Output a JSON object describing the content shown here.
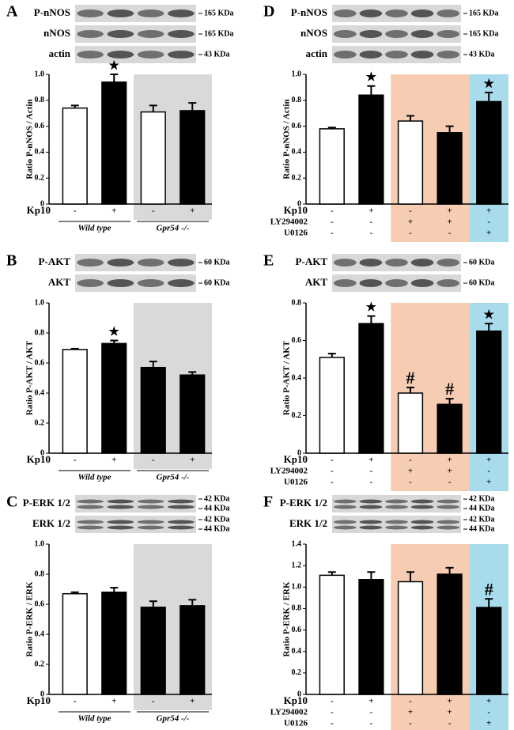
{
  "chart_data": [
    {
      "type": "bar",
      "panel": "A",
      "blots": [
        {
          "label": "P-nNOS",
          "size": "165 KDa"
        },
        {
          "label": "nNOS",
          "size": "165 KDa"
        },
        {
          "label": "actin",
          "size": "43 KDa"
        }
      ],
      "y_label": "Ratio P-nNOS / Actin",
      "categories": [
        null,
        null,
        null,
        null
      ],
      "values": [
        0.74,
        0.94,
        0.71,
        0.72
      ],
      "errors": [
        0.02,
        0.06,
        0.05,
        0.06
      ],
      "colors": [
        "#ffffff",
        "#000000",
        "#ffffff",
        "#000000"
      ],
      "annotations": [
        null,
        "★",
        null,
        null
      ],
      "conditions": [
        {
          "name": "Kp10",
          "signs": [
            "-",
            "+",
            "-",
            "+"
          ]
        }
      ],
      "groups": [
        {
          "label": "Wild type",
          "size": 2
        },
        {
          "label": "Gpr54 -/-",
          "size": 2,
          "shade": "#d9d9d9"
        }
      ],
      "ylim": [
        0,
        1
      ],
      "yticks": [
        0,
        0.2,
        0.4,
        0.6,
        0.8,
        {
          "value": 1,
          "label": "1.0"
        }
      ]
    },
    {
      "type": "bar",
      "panel": "B",
      "blots": [
        {
          "label": "P-AKT",
          "size": "60 KDa"
        },
        {
          "label": "AKT",
          "size": "60 KDa"
        }
      ],
      "y_label": "Ratio P-AKT / AKT",
      "categories": [
        null,
        null,
        null,
        null
      ],
      "values": [
        0.69,
        0.73,
        0.57,
        0.52
      ],
      "errors": [
        0.005,
        0.02,
        0.04,
        0.02
      ],
      "colors": [
        "#ffffff",
        "#000000",
        "#000000",
        "#000000"
      ],
      "annotations": [
        null,
        "★",
        null,
        null
      ],
      "conditions": [
        {
          "name": "Kp10",
          "signs": [
            "-",
            "+",
            "-",
            "+"
          ]
        }
      ],
      "groups": [
        {
          "label": "Wild type",
          "size": 2
        },
        {
          "label": "Gpr54 -/-",
          "size": 2,
          "shade": "#d9d9d9"
        }
      ],
      "ylim": [
        0,
        1
      ],
      "yticks": [
        0,
        0.2,
        0.4,
        0.6,
        0.8,
        {
          "value": 1,
          "label": "1.0"
        }
      ]
    },
    {
      "type": "bar",
      "panel": "C",
      "blots": [
        {
          "label": "P-ERK 1/2",
          "size": [
            "42 KDa",
            "44 KDa"
          ]
        },
        {
          "label": "ERK 1/2",
          "size": [
            "42 KDa",
            "44 KDa"
          ]
        }
      ],
      "y_label": "Ratio P-ERK / ERK",
      "categories": [
        null,
        null,
        null,
        null
      ],
      "values": [
        0.67,
        0.68,
        0.58,
        0.59
      ],
      "errors": [
        0.01,
        0.03,
        0.04,
        0.04
      ],
      "colors": [
        "#ffffff",
        "#000000",
        "#000000",
        "#000000"
      ],
      "annotations": [
        null,
        null,
        null,
        null
      ],
      "conditions": [
        {
          "name": "Kp10",
          "signs": [
            "-",
            "+",
            "-",
            "+"
          ]
        }
      ],
      "groups": [
        {
          "label": "Wild type",
          "size": 2
        },
        {
          "label": "Gpr54 -/-",
          "size": 2,
          "shade": "#d9d9d9"
        }
      ],
      "ylim": [
        0,
        1
      ],
      "yticks": [
        0,
        0.2,
        0.4,
        0.6,
        0.8,
        {
          "value": 1,
          "label": "1.0"
        }
      ]
    },
    {
      "type": "bar",
      "panel": "D",
      "blots": [
        {
          "label": "P-nNOS",
          "size": "165 KDa"
        },
        {
          "label": "nNOS",
          "size": "165 KDa"
        },
        {
          "label": "actin",
          "size": "43 KDa"
        }
      ],
      "y_label": "Ratio P-nNOS / Actin",
      "categories": [
        null,
        null,
        null,
        null,
        null
      ],
      "values": [
        0.58,
        0.84,
        0.64,
        0.55,
        0.79
      ],
      "errors": [
        0.01,
        0.07,
        0.04,
        0.05,
        0.07
      ],
      "colors": [
        "#ffffff",
        "#000000",
        "#ffffff",
        "#000000",
        "#000000"
      ],
      "annotations": [
        null,
        "★",
        null,
        null,
        "★"
      ],
      "conditions": [
        {
          "name": "Kp10",
          "signs": [
            "-",
            "+",
            "-",
            "+",
            "+"
          ]
        },
        {
          "name": "LY294002",
          "signs": [
            "-",
            "-",
            "+",
            "+",
            "-"
          ]
        },
        {
          "name": "U0126",
          "signs": [
            "-",
            "-",
            "-",
            "-",
            "+"
          ]
        }
      ],
      "groups": [
        {
          "size": 2
        },
        {
          "size": 2,
          "shade": "#f6cdb3"
        },
        {
          "size": 1,
          "shade": "#a8dbec"
        }
      ],
      "ylim": [
        0,
        1
      ],
      "yticks": [
        0,
        0.2,
        0.4,
        0.6,
        0.8,
        {
          "value": 1,
          "label": "1.0"
        }
      ]
    },
    {
      "type": "bar",
      "panel": "E",
      "blots": [
        {
          "label": "P-AKT",
          "size": "60 KDa"
        },
        {
          "label": "AKT",
          "size": "60 KDa"
        }
      ],
      "y_label": "Ratio P-AKT / AKT",
      "categories": [
        null,
        null,
        null,
        null,
        null
      ],
      "values": [
        0.51,
        0.69,
        0.32,
        0.26,
        0.65
      ],
      "errors": [
        0.02,
        0.04,
        0.03,
        0.03,
        0.04
      ],
      "colors": [
        "#ffffff",
        "#000000",
        "#ffffff",
        "#000000",
        "#000000"
      ],
      "annotations": [
        null,
        "★",
        "#",
        "#",
        "★"
      ],
      "conditions": [
        {
          "name": "Kp10",
          "signs": [
            "-",
            "+",
            "-",
            "+",
            "+"
          ]
        },
        {
          "name": "LY294002",
          "signs": [
            "-",
            "-",
            "+",
            "+",
            "-"
          ]
        },
        {
          "name": "U0126",
          "signs": [
            "-",
            "-",
            "-",
            "-",
            "+"
          ]
        }
      ],
      "groups": [
        {
          "size": 2
        },
        {
          "size": 2,
          "shade": "#f6cdb3"
        },
        {
          "size": 1,
          "shade": "#a8dbec"
        }
      ],
      "ylim": [
        0,
        0.8
      ],
      "yticks": [
        0,
        0.2,
        0.4,
        0.6,
        0.8
      ]
    },
    {
      "type": "bar",
      "panel": "F",
      "blots": [
        {
          "label": "P-ERK 1/2",
          "size": [
            "42 KDa",
            "44 KDa"
          ]
        },
        {
          "label": "ERK 1/2",
          "size": [
            "42 KDa",
            "44 KDa"
          ]
        }
      ],
      "y_label": "Ratio P-ERK / ERK",
      "categories": [
        null,
        null,
        null,
        null,
        null
      ],
      "values": [
        1.11,
        1.07,
        1.05,
        1.12,
        0.81
      ],
      "errors": [
        0.03,
        0.07,
        0.09,
        0.06,
        0.08
      ],
      "colors": [
        "#ffffff",
        "#000000",
        "#ffffff",
        "#000000",
        "#000000"
      ],
      "annotations": [
        null,
        null,
        null,
        null,
        "#"
      ],
      "conditions": [
        {
          "name": "Kp10",
          "signs": [
            "-",
            "+",
            "-",
            "+",
            "+"
          ]
        },
        {
          "name": "LY294002",
          "signs": [
            "-",
            "-",
            "+",
            "+",
            "-"
          ]
        },
        {
          "name": "U0126",
          "signs": [
            "-",
            "-",
            "-",
            "-",
            "+"
          ]
        }
      ],
      "groups": [
        {
          "size": 2
        },
        {
          "size": 2,
          "shade": "#f6cdb3"
        },
        {
          "size": 1,
          "shade": "#a8dbec"
        }
      ],
      "ylim": [
        0,
        1.4
      ],
      "yticks": [
        0,
        0.2,
        0.4,
        0.6,
        0.8,
        {
          "value": 1,
          "label": "1.0"
        },
        1.2,
        1.4
      ]
    }
  ]
}
